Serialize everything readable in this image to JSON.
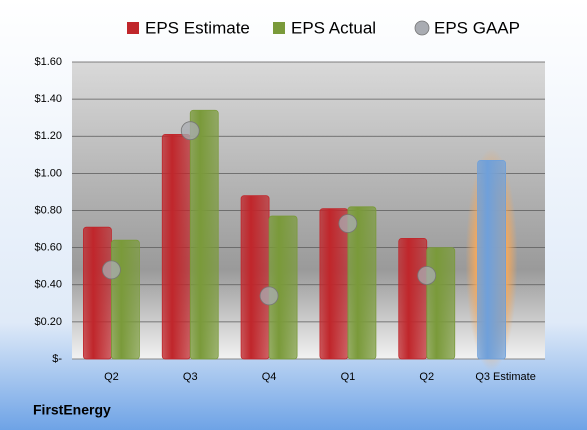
{
  "chart_data": {
    "type": "bar",
    "categories": [
      "Q2",
      "Q3",
      "Q4",
      "Q1",
      "Q2",
      "Q3 Estimate"
    ],
    "series": [
      {
        "name": "EPS Estimate",
        "color": "#c0262b",
        "values": [
          0.71,
          1.21,
          0.88,
          0.81,
          0.65,
          1.07
        ],
        "highlight": {
          "index": 5,
          "color": "#6fa0da"
        }
      },
      {
        "name": "EPS Actual",
        "color": "#7a9a3a",
        "values": [
          0.64,
          1.34,
          0.77,
          0.82,
          0.6,
          null
        ]
      },
      {
        "name": "EPS GAAP",
        "color": "#a9acb2",
        "marker": "bubble",
        "values": [
          0.48,
          1.23,
          0.34,
          0.73,
          0.45,
          null
        ]
      }
    ],
    "ylim": [
      0,
      1.6
    ],
    "yticks": [
      {
        "value": 0,
        "label": "$-"
      },
      {
        "value": 0.2,
        "label": "$0.20"
      },
      {
        "value": 0.4,
        "label": "$0.40"
      },
      {
        "value": 0.6,
        "label": "$0.60"
      },
      {
        "value": 0.8,
        "label": "$0.80"
      },
      {
        "value": 1.0,
        "label": "$1.00"
      },
      {
        "value": 1.2,
        "label": "$1.20"
      },
      {
        "value": 1.4,
        "label": "$1.40"
      },
      {
        "value": 1.6,
        "label": "$1.60"
      }
    ],
    "grid": true,
    "legend": "top",
    "footer": "FirstEnergy"
  }
}
